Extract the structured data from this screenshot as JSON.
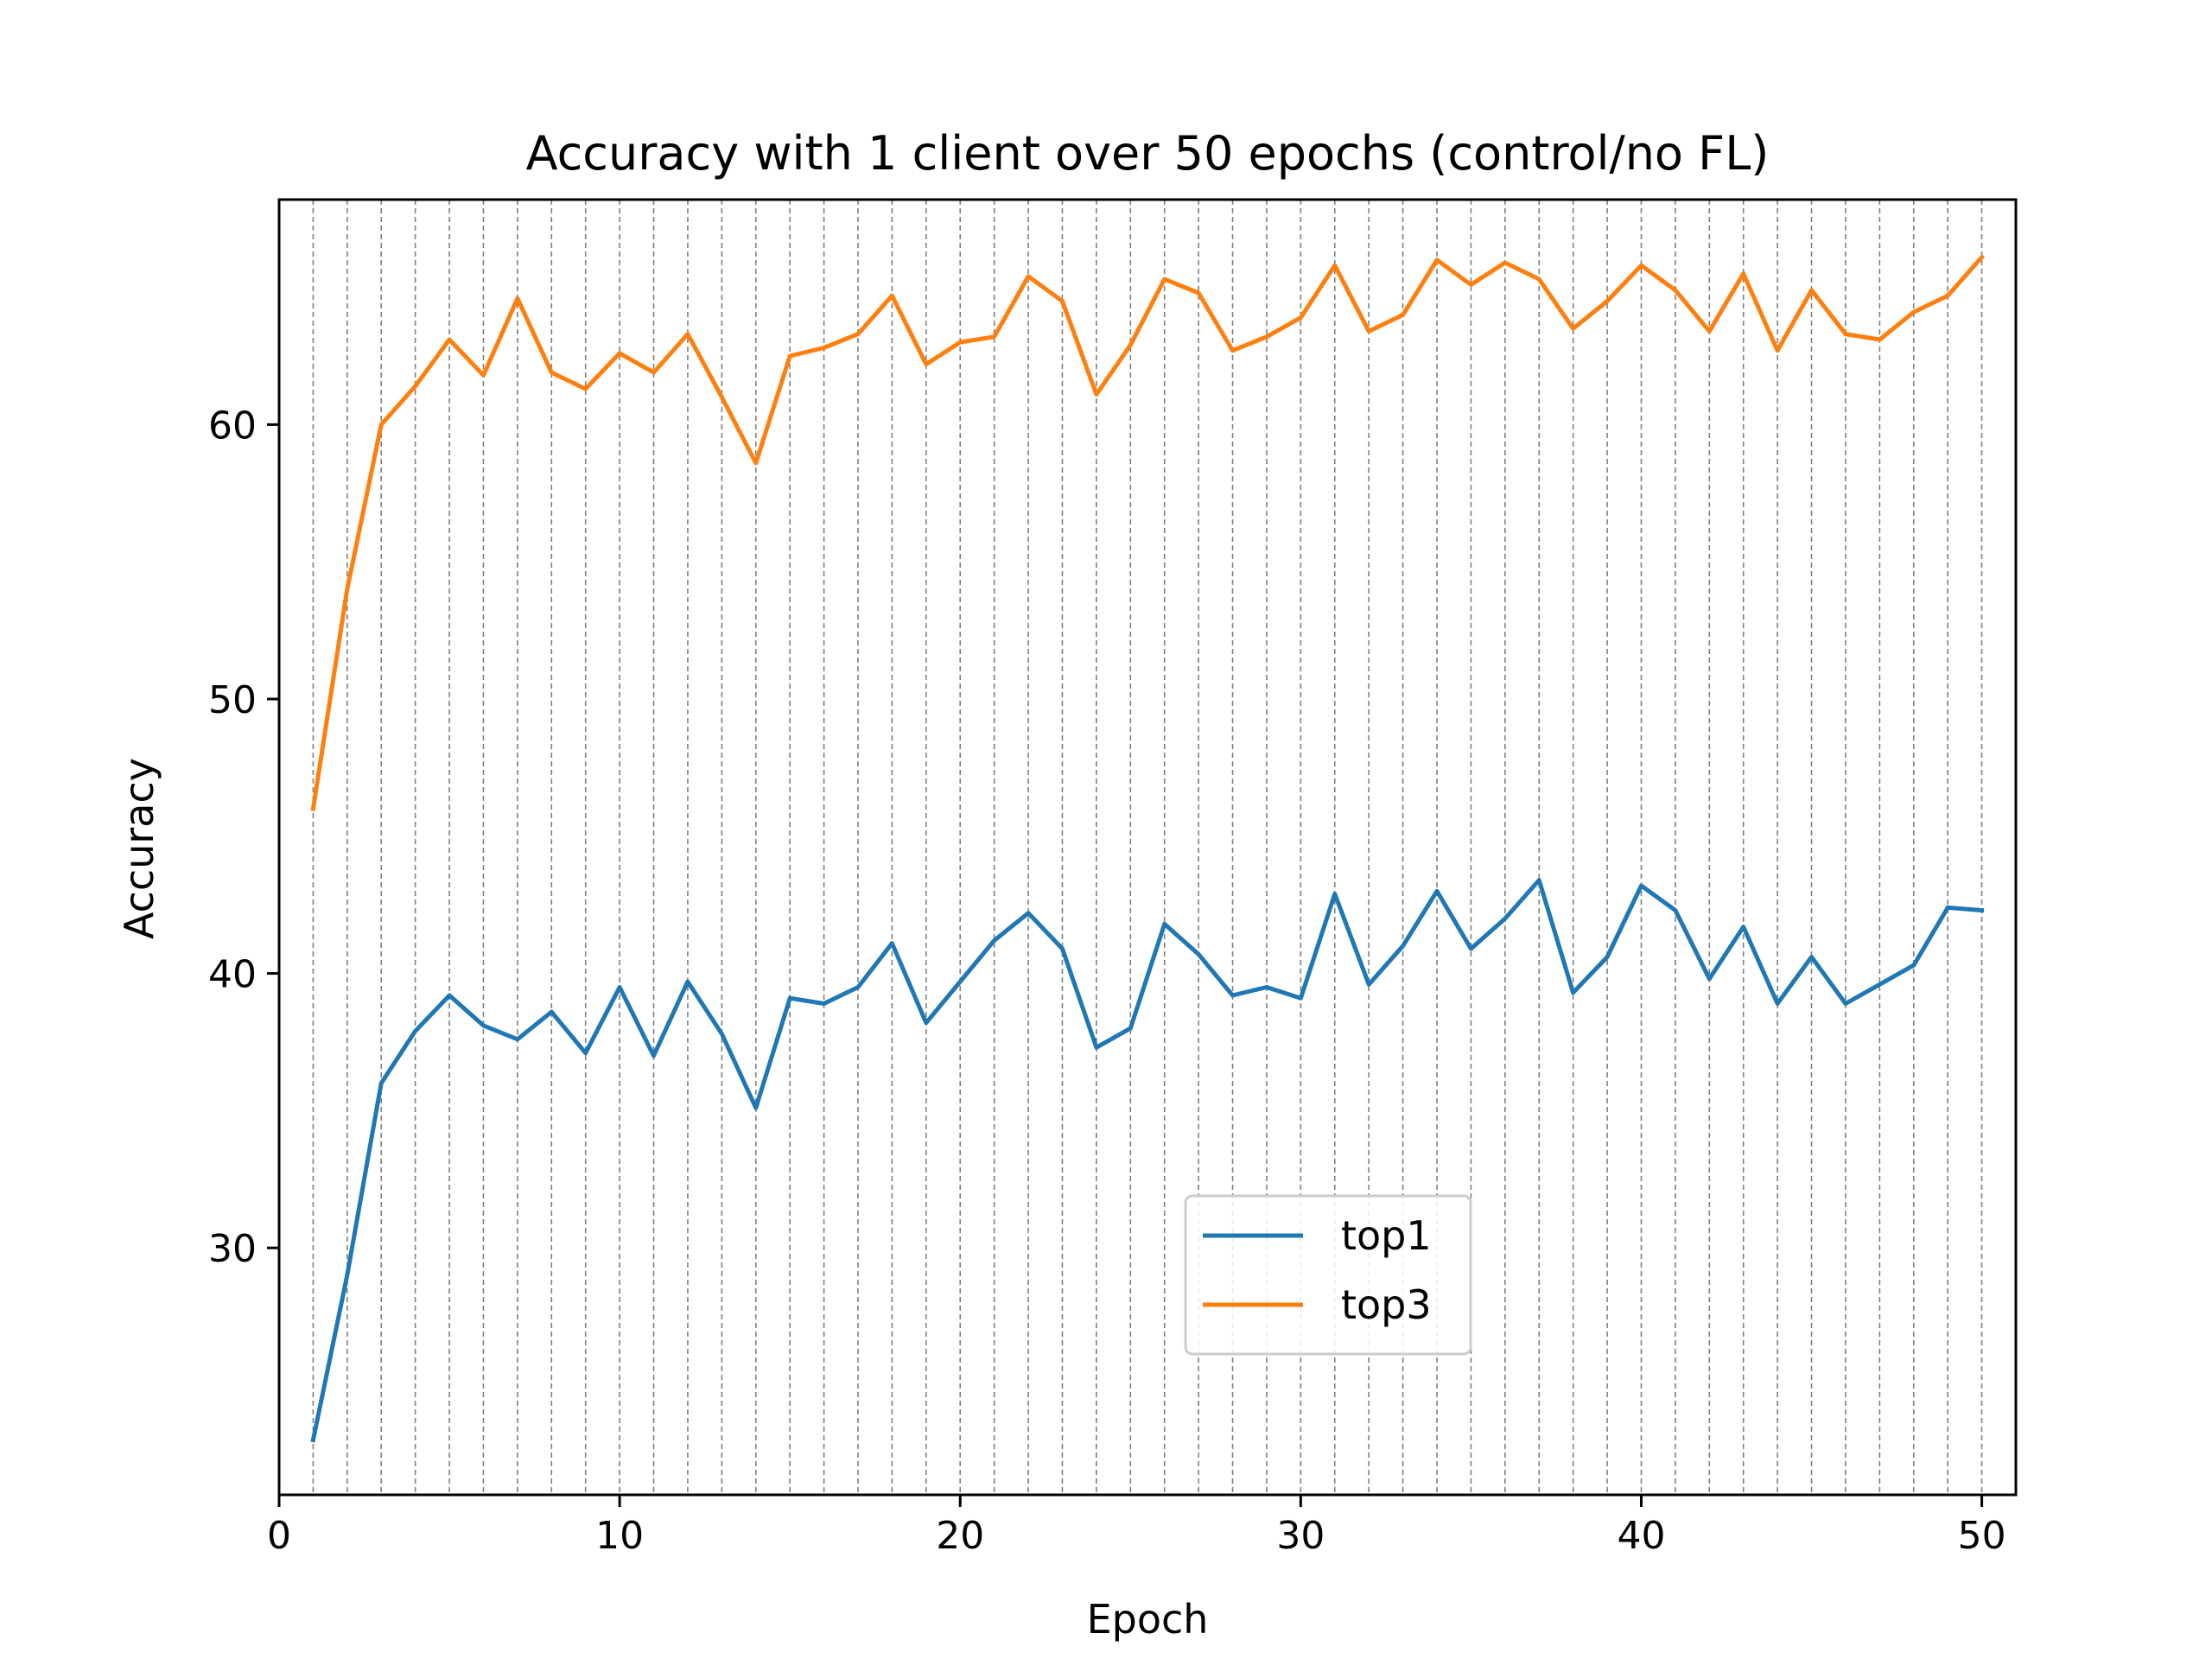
{
  "chart_data": {
    "type": "line",
    "title": "Accuracy with 1 client over 50 epochs (control/no FL)",
    "xlabel": "Epoch",
    "ylabel": "Accuracy",
    "xlim": [
      0,
      51
    ],
    "ylim": [
      21,
      68.2
    ],
    "xticks": [
      0,
      10,
      20,
      30,
      40,
      50
    ],
    "yticks": [
      30,
      40,
      50,
      60
    ],
    "vertical_grid": {
      "at_every_epoch": true,
      "style": "dashed",
      "color": "#808080"
    },
    "legend_placement": "lower-center",
    "x": [
      1,
      2,
      3,
      4,
      5,
      6,
      7,
      8,
      9,
      10,
      11,
      12,
      13,
      14,
      15,
      16,
      17,
      18,
      19,
      20,
      21,
      22,
      23,
      24,
      25,
      26,
      27,
      28,
      29,
      30,
      31,
      32,
      33,
      34,
      35,
      36,
      37,
      38,
      39,
      40,
      41,
      42,
      43,
      44,
      45,
      46,
      47,
      48,
      49,
      50
    ],
    "series": [
      {
        "name": "top1",
        "color": "#1f77b4",
        "values": [
          23.0,
          29.0,
          36.0,
          37.9,
          39.2,
          38.1,
          37.6,
          38.6,
          37.1,
          39.5,
          37.0,
          39.7,
          37.8,
          35.1,
          39.1,
          38.9,
          39.5,
          41.1,
          38.2,
          39.7,
          41.2,
          42.2,
          40.9,
          37.3,
          38.0,
          41.8,
          40.7,
          39.2,
          39.5,
          39.1,
          42.9,
          39.6,
          41.0,
          43.0,
          40.9,
          42.0,
          43.4,
          39.3,
          40.6,
          43.2,
          42.3,
          39.8,
          41.7,
          38.9,
          40.6,
          38.9,
          39.6,
          40.3,
          42.4,
          42.3
        ]
      },
      {
        "name": "top3",
        "color": "#ff7f0e",
        "values": [
          46.0,
          54.0,
          60.0,
          61.4,
          63.1,
          61.8,
          64.6,
          61.9,
          61.3,
          62.6,
          61.9,
          63.3,
          61.0,
          58.6,
          62.5,
          62.8,
          63.3,
          64.7,
          62.2,
          63.0,
          63.2,
          65.4,
          64.5,
          61.1,
          62.9,
          65.3,
          64.8,
          62.7,
          63.2,
          63.9,
          65.8,
          63.4,
          64.0,
          66.0,
          65.1,
          65.9,
          65.3,
          63.5,
          64.5,
          65.8,
          64.9,
          63.4,
          65.5,
          62.7,
          64.9,
          63.3,
          63.1,
          64.1,
          64.7,
          66.1
        ]
      }
    ]
  }
}
